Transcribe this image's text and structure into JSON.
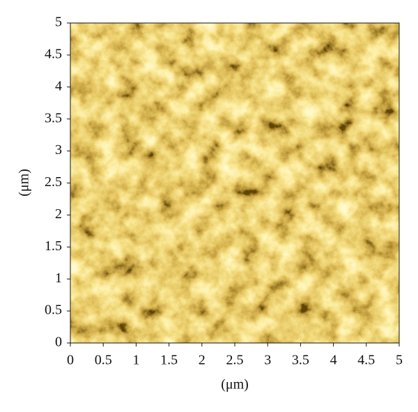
{
  "chart_data": {
    "type": "image",
    "xlabel": "(μm)",
    "ylabel": "(μm)",
    "xlim": [
      0,
      5
    ],
    "ylim": [
      0,
      5
    ],
    "xticks": [
      0,
      0.5,
      1,
      1.5,
      2,
      2.5,
      3,
      3.5,
      4,
      4.5,
      5
    ],
    "yticks": [
      0,
      0.5,
      1,
      1.5,
      2,
      2.5,
      3,
      3.5,
      4,
      4.5,
      5
    ]
  }
}
